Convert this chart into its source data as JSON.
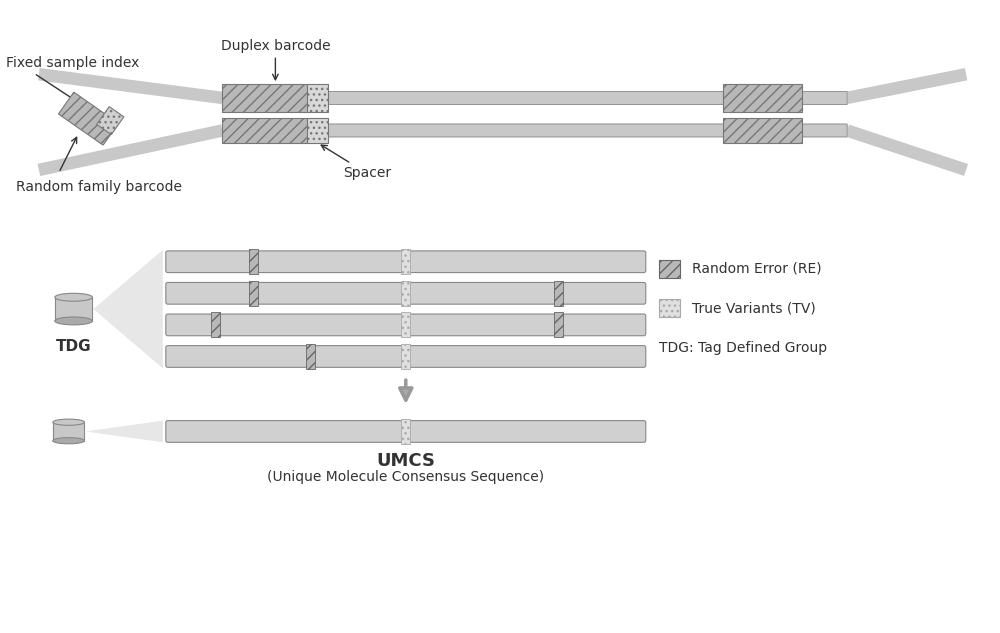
{
  "bg_color": "#ffffff",
  "line_color": "#aaaaaa",
  "strand_color": "#c8c8c8",
  "barcode_hatch_color": "#888888",
  "barcode_fill": "#c0c0c0",
  "spacer_fill": "#e0e0e0",
  "tv_fill": "#d8d8d8",
  "re_fill": "#b0b0b0",
  "text_color": "#333333",
  "arrow_color": "#999999",
  "labels": {
    "duplex_barcode": "Duplex barcode",
    "fixed_sample_index": "Fixed sample index",
    "random_family_barcode": "Random family barcode",
    "spacer": "Spacer",
    "tdg": "TDG",
    "umcs": "UMCS",
    "umcs_full": "(Unique Molecule Consensus Sequence)",
    "random_error": "Random Error (RE)",
    "true_variants": "True Variants (TV)",
    "tdg_full": "TDG: Tag Defined Group"
  }
}
